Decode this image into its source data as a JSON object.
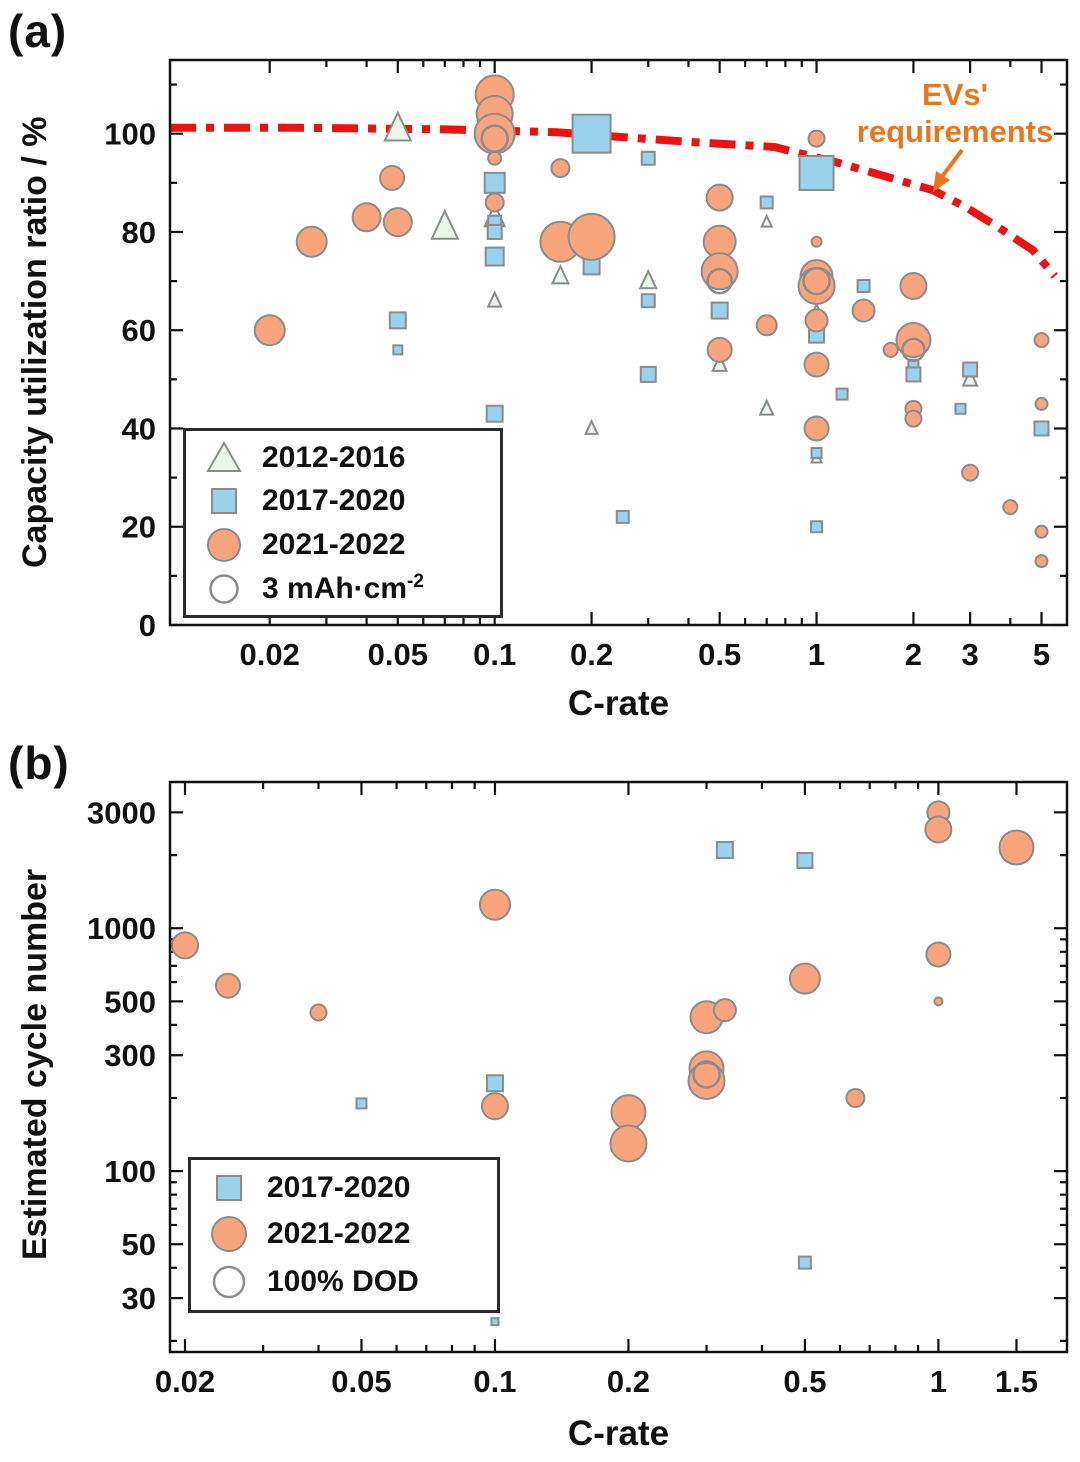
{
  "panels": {
    "a": {
      "tag": "(a)",
      "annotation": {
        "line1": "EVs'",
        "line2": "requirements"
      },
      "legend": [
        {
          "marker": "triangle",
          "label": "2012-2016"
        },
        {
          "marker": "square",
          "label": "2017-2020"
        },
        {
          "marker": "circle",
          "label": "2021-2022"
        },
        {
          "marker": "open-circle",
          "label": "3 mAh·cm",
          "sup": "-2"
        }
      ]
    },
    "b": {
      "tag": "(b)",
      "legend": [
        {
          "marker": "square",
          "label": "2017-2020"
        },
        {
          "marker": "circle",
          "label": "2021-2022"
        },
        {
          "marker": "open-circle",
          "label": "100% DOD"
        }
      ]
    }
  },
  "colors": {
    "triangle_fill": "#EAF6EB",
    "square_fill": "#99D2EA",
    "circle_fill": "#F8A57D",
    "marker_edge": "#8C8C8C",
    "ev_line": "#EC1212",
    "annotation_text": "#E7761D",
    "axis_color": "#111111"
  },
  "chart_data": [
    {
      "id": "panel_a",
      "type": "scatter",
      "xlabel": "C-rate",
      "ylabel": "Capacity utilization ratio / %",
      "xscale": "log",
      "yscale": "linear",
      "xlim": [
        0.0098,
        6.0
      ],
      "ylim": [
        0,
        115
      ],
      "grid": false,
      "legend_position": "lower-left",
      "xticks": {
        "values": [
          0.02,
          0.05,
          0.1,
          0.2,
          0.5,
          1,
          2,
          3,
          5
        ],
        "labels": [
          "0.02",
          "0.05",
          "0.1",
          "0.2",
          "0.5",
          "1",
          "2",
          "3",
          "5"
        ]
      },
      "xminor": [
        0.03,
        0.04,
        0.06,
        0.07,
        0.08,
        0.09,
        0.3,
        0.4,
        0.6,
        0.7,
        0.8,
        0.9,
        4
      ],
      "yticks": {
        "values": [
          0,
          20,
          40,
          60,
          80,
          100
        ],
        "labels": [
          "0",
          "20",
          "40",
          "60",
          "80",
          "100"
        ]
      },
      "yminor": [
        10,
        30,
        50,
        70,
        90,
        110
      ],
      "point_format": "[C-rate, capacity_utilization_%, marker_px (areal capacity size)]",
      "series": [
        {
          "name": "2012-2016",
          "marker": "triangle",
          "points": [
            [
              0.05,
              101,
              26
            ],
            [
              0.07,
              81,
              26
            ],
            [
              0.1,
              83,
              20
            ],
            [
              0.1,
              66,
              13
            ],
            [
              0.16,
              71,
              16
            ],
            [
              0.3,
              70,
              16
            ],
            [
              0.2,
              40,
              12
            ],
            [
              0.5,
              53,
              14
            ],
            [
              0.7,
              44,
              13
            ],
            [
              0.7,
              82,
              10
            ],
            [
              1,
              63,
              18
            ],
            [
              3,
              50,
              14
            ],
            [
              1,
              34,
              10
            ]
          ]
        },
        {
          "name": "2017-2020",
          "marker": "square",
          "points": [
            [
              0.05,
              62,
              16
            ],
            [
              0.05,
              56,
              9
            ],
            [
              0.1,
              90,
              20
            ],
            [
              0.1,
              82,
              13
            ],
            [
              0.1,
              80,
              14
            ],
            [
              0.1,
              75,
              18
            ],
            [
              0.1,
              43,
              16
            ],
            [
              0.2,
              100,
              38
            ],
            [
              0.2,
              73,
              16
            ],
            [
              0.25,
              22,
              12
            ],
            [
              0.3,
              95,
              13
            ],
            [
              0.3,
              66,
              13
            ],
            [
              0.3,
              51,
              15
            ],
            [
              0.5,
              64,
              16
            ],
            [
              0.7,
              86,
              12
            ],
            [
              1,
              92,
              34
            ],
            [
              1,
              59,
              15
            ],
            [
              1,
              35,
              10
            ],
            [
              1,
              20,
              11
            ],
            [
              1.2,
              47,
              11
            ],
            [
              1.4,
              69,
              12
            ],
            [
              2,
              53,
              10
            ],
            [
              2,
              51,
              14
            ],
            [
              2.8,
              44,
              10
            ],
            [
              3,
              52,
              14
            ],
            [
              5,
              40,
              14
            ]
          ]
        },
        {
          "name": "2021-2022",
          "marker": "circle",
          "points": [
            [
              0.02,
              60,
              30
            ],
            [
              0.027,
              78,
              30
            ],
            [
              0.04,
              83,
              28
            ],
            [
              0.048,
              91,
              24
            ],
            [
              0.05,
              82,
              28
            ],
            [
              0.1,
              108,
              38
            ],
            [
              0.1,
              104,
              36
            ],
            [
              0.1,
              100,
              40
            ],
            [
              0.1,
              95,
              13
            ],
            [
              0.1,
              86,
              18
            ],
            [
              0.16,
              93,
              18
            ],
            [
              0.16,
              78,
              40
            ],
            [
              0.2,
              79,
              46
            ],
            [
              0.5,
              87,
              26
            ],
            [
              0.5,
              78,
              32
            ],
            [
              0.5,
              72,
              36
            ],
            [
              0.5,
              56,
              24
            ],
            [
              0.7,
              61,
              20
            ],
            [
              1,
              99,
              16
            ],
            [
              1,
              78,
              10
            ],
            [
              1,
              71,
              32
            ],
            [
              1,
              69,
              36
            ],
            [
              1,
              62,
              22
            ],
            [
              1,
              53,
              24
            ],
            [
              1,
              40,
              24
            ],
            [
              1.4,
              64,
              22
            ],
            [
              1.7,
              56,
              14
            ],
            [
              2,
              69,
              26
            ],
            [
              2,
              58,
              34
            ],
            [
              2,
              44,
              16
            ],
            [
              2,
              42,
              16
            ],
            [
              3,
              31,
              16
            ],
            [
              4,
              24,
              14
            ],
            [
              5,
              58,
              14
            ],
            [
              5,
              45,
              12
            ],
            [
              5,
              19,
              12
            ],
            [
              5,
              13,
              12
            ]
          ]
        },
        {
          "name": "3 mAh·cm⁻²",
          "marker": "open-circle",
          "points": [
            [
              0.1,
              99,
              26
            ],
            [
              0.5,
              70,
              24
            ],
            [
              1,
              70,
              26
            ],
            [
              2,
              56,
              22
            ]
          ]
        }
      ],
      "ev_requirements_line": {
        "label": "EVs' requirements",
        "style": "dash-dot",
        "points": [
          [
            0.0098,
            101.2
          ],
          [
            0.025,
            101.2
          ],
          [
            0.068,
            100.9
          ],
          [
            0.156,
            100.3
          ],
          [
            0.25,
            99.3
          ],
          [
            0.41,
            98.3
          ],
          [
            0.74,
            97.3
          ],
          [
            1.18,
            94.0
          ],
          [
            1.7,
            91.0
          ],
          [
            2.3,
            88.5
          ],
          [
            2.9,
            85.1
          ],
          [
            3.7,
            80.8
          ],
          [
            4.7,
            76.3
          ],
          [
            5.5,
            71.0
          ]
        ]
      }
    },
    {
      "id": "panel_b",
      "type": "scatter",
      "xlabel": "C-rate",
      "ylabel": "Estimated cycle number",
      "xscale": "log",
      "yscale": "log",
      "xlim": [
        0.0185,
        1.95
      ],
      "ylim": [
        18,
        4000
      ],
      "grid": false,
      "legend_position": "lower-left",
      "xticks": {
        "values": [
          0.02,
          0.05,
          0.1,
          0.2,
          0.5,
          1,
          1.5
        ],
        "labels": [
          "0.02",
          "0.05",
          "0.1",
          "0.2",
          "0.5",
          "1",
          "1.5"
        ]
      },
      "xminor": [
        0.03,
        0.04,
        0.06,
        0.07,
        0.08,
        0.09,
        0.3,
        0.4,
        0.6,
        0.7,
        0.8,
        0.9
      ],
      "yticks": {
        "values": [
          30,
          50,
          100,
          300,
          500,
          1000,
          3000
        ],
        "labels": [
          "30",
          "50",
          "100",
          "300",
          "500",
          "1000",
          "3000"
        ]
      },
      "yminor": [
        20,
        40,
        60,
        70,
        80,
        90,
        200,
        400,
        600,
        700,
        800,
        900,
        2000
      ],
      "point_format": "[C-rate, estimated_cycle_number, marker_px]",
      "series": [
        {
          "name": "2017-2020",
          "marker": "square",
          "points": [
            [
              0.05,
              190,
              10
            ],
            [
              0.1,
              230,
              16
            ],
            [
              0.1,
              24,
              7
            ],
            [
              0.33,
              2100,
              16
            ],
            [
              0.5,
              1900,
              15
            ],
            [
              0.5,
              42,
              12
            ]
          ]
        },
        {
          "name": "2021-2022",
          "marker": "circle",
          "points": [
            [
              0.02,
              850,
              26
            ],
            [
              0.025,
              580,
              24
            ],
            [
              0.04,
              450,
              16
            ],
            [
              0.1,
              1250,
              30
            ],
            [
              0.1,
              185,
              26
            ],
            [
              0.2,
              175,
              34
            ],
            [
              0.2,
              130,
              36
            ],
            [
              0.3,
              430,
              32
            ],
            [
              0.33,
              460,
              22
            ],
            [
              0.3,
              265,
              34
            ],
            [
              0.3,
              235,
              36
            ],
            [
              0.5,
              620,
              30
            ],
            [
              0.65,
              200,
              18
            ],
            [
              1,
              3000,
              22
            ],
            [
              1,
              2550,
              26
            ],
            [
              1,
              780,
              24
            ],
            [
              1,
              500,
              8
            ],
            [
              1.5,
              2150,
              34
            ]
          ]
        },
        {
          "name": "100% DOD",
          "marker": "open-circle",
          "points": [
            [
              0.3,
              250,
              26
            ]
          ]
        }
      ]
    }
  ]
}
